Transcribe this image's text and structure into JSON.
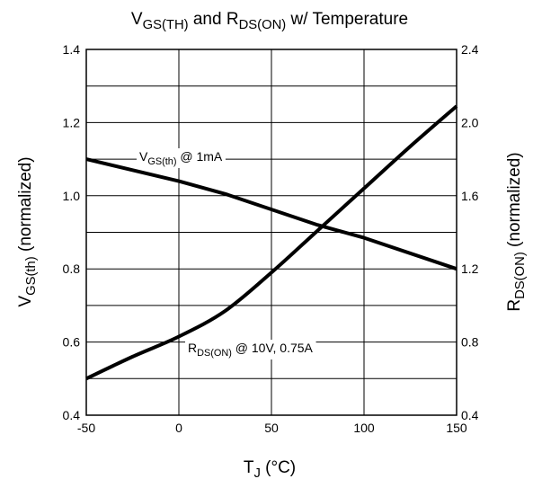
{
  "chart_data": {
    "type": "line",
    "title": {
      "main": "V",
      "sub": "GS(TH)",
      "mid": " and R",
      "sub2": "DS(ON)",
      "rest": " w/ Temperature"
    },
    "xlabel": {
      "main": "T",
      "sub": "J",
      "rest": " (°C)"
    },
    "ylabel_left": {
      "main": "V",
      "sub": "GS(th)",
      "rest": " (normalized)"
    },
    "ylabel_right": {
      "main": "R",
      "sub": "DS(ON)",
      "rest": " (normalized)"
    },
    "xlim": [
      -50,
      150
    ],
    "ylim_left": [
      0.4,
      1.4
    ],
    "ylim_right": [
      0.4,
      2.4
    ],
    "x_ticks": [
      "-50",
      "0",
      "50",
      "100",
      "150"
    ],
    "y_ticks_left": [
      "0.4",
      "0.6",
      "0.8",
      "1.0",
      "1.2",
      "1.4"
    ],
    "y_ticks_right": [
      "0.4",
      "0.8",
      "1.2",
      "1.6",
      "2.0",
      "2.4"
    ],
    "grid": true,
    "series": [
      {
        "name": "VGS(th) @ 1mA",
        "axis": "left",
        "x": [
          -50,
          0,
          25,
          75,
          100,
          150
        ],
        "y": [
          1.1,
          1.04,
          1.005,
          0.92,
          0.885,
          0.8
        ]
      },
      {
        "name": "RDS(ON) @ 10V, 0.75A",
        "axis": "right",
        "x": [
          -50,
          -25,
          0,
          25,
          50,
          75,
          100,
          125,
          150
        ],
        "y": [
          0.6,
          0.72,
          0.83,
          0.97,
          1.18,
          1.41,
          1.64,
          1.87,
          2.09
        ]
      }
    ],
    "annotations": [
      {
        "main": "V",
        "sub": "GS(th)",
        "rest": " @ 1mA"
      },
      {
        "main": "R",
        "sub": "DS(ON)",
        "rest": " @ 10V, 0.75A"
      }
    ]
  }
}
